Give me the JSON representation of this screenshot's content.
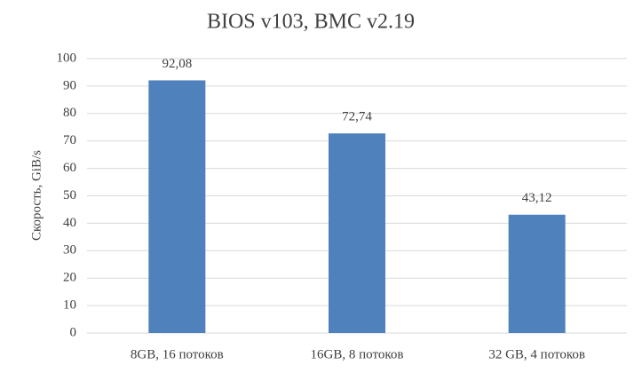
{
  "chart_data": {
    "type": "bar",
    "title": "BIOS v103, BMC v2.19",
    "y_label": "Скорость, GiB/s",
    "categories": [
      "8GB, 16 потоков",
      "16GB, 8 потоков",
      "32 GB, 4 потоков"
    ],
    "values": [
      92.08,
      72.74,
      43.12
    ],
    "value_labels": [
      "92,08",
      "72,74",
      "43,12"
    ],
    "color": "#4f81bd",
    "ylim": [
      0,
      100
    ],
    "yticks": [
      0,
      10,
      20,
      30,
      40,
      50,
      60,
      70,
      80,
      90,
      100
    ],
    "grid": true
  }
}
